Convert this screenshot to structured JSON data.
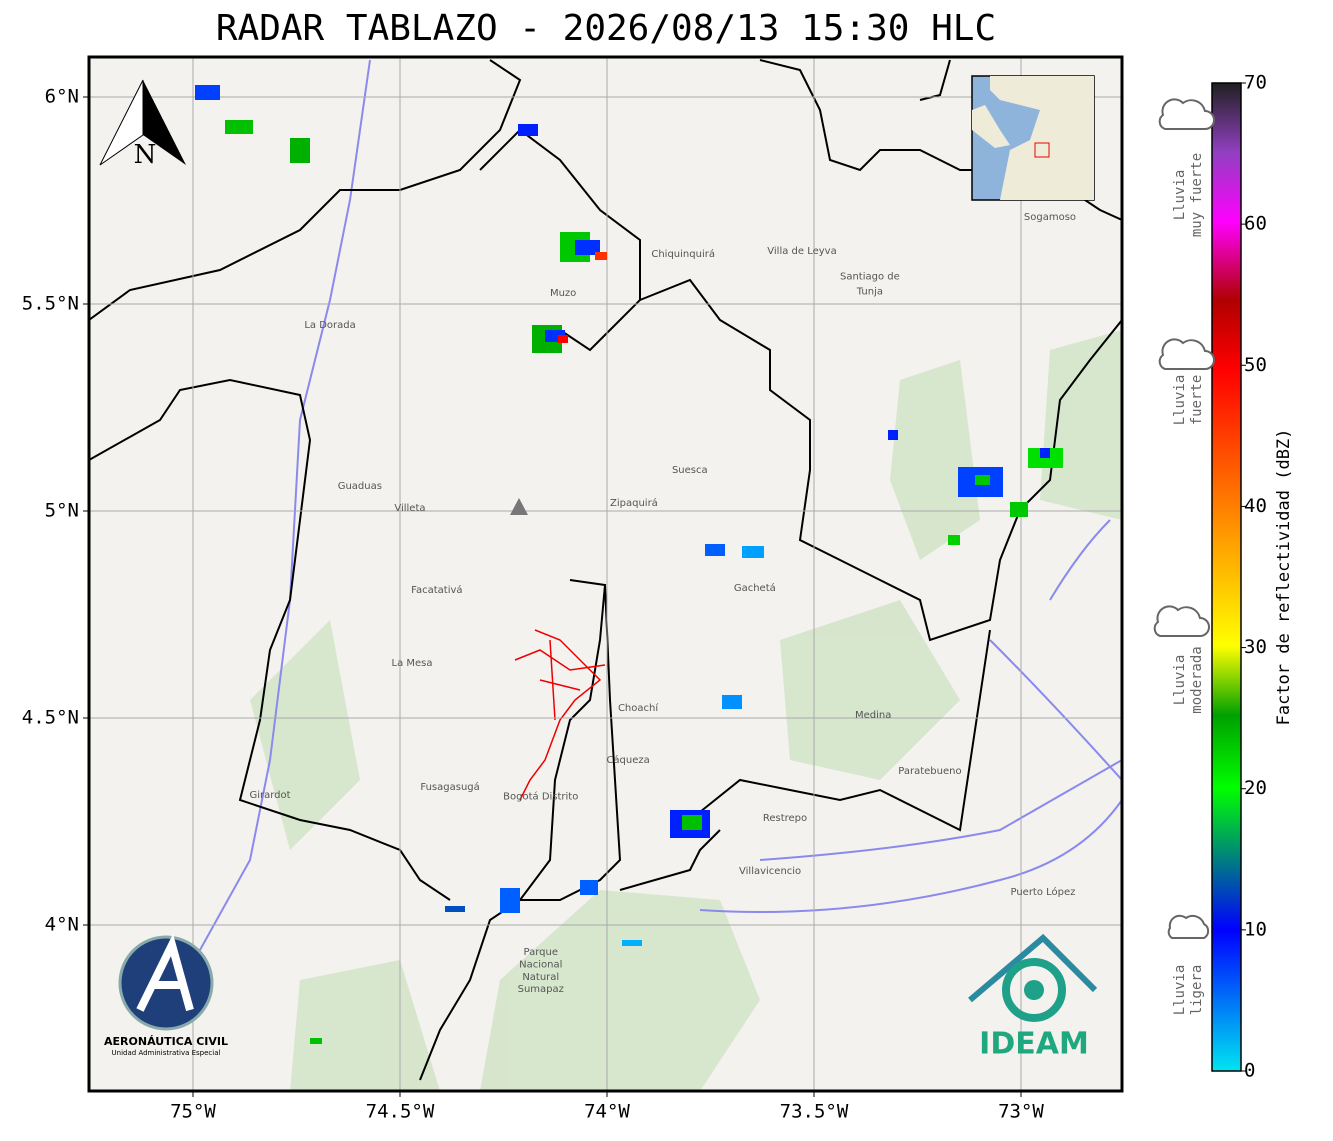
{
  "title": "RADAR TABLAZO - 2026/08/13 15:30 HLC",
  "map": {
    "lon_ticks": [
      {
        "value": -75,
        "label": "75°W"
      },
      {
        "value": -74.5,
        "label": "74.5°W"
      },
      {
        "value": -74,
        "label": "74°W"
      },
      {
        "value": -73.5,
        "label": "73.5°W"
      },
      {
        "value": -73,
        "label": "73°W"
      }
    ],
    "lat_ticks": [
      {
        "value": 6,
        "label": "6°N"
      },
      {
        "value": 5.5,
        "label": "5.5°N"
      },
      {
        "value": 5,
        "label": "5°N"
      },
      {
        "value": 4.5,
        "label": "4.5°N"
      },
      {
        "value": 4,
        "label": "4°N"
      }
    ],
    "north": "N",
    "places": [
      {
        "name": "Villavicencio",
        "lon": -73.606,
        "lat": 4.13
      },
      {
        "name": "Villa de Leyva",
        "lon": -73.529,
        "lat": 5.628
      },
      {
        "name": "Santiago de",
        "lon": -73.365,
        "lat": 5.566
      },
      {
        "name": "Tunja",
        "lon": -73.365,
        "lat": 5.53
      },
      {
        "name": "Sogamoso",
        "lon": -72.93,
        "lat": 5.71
      },
      {
        "name": "Zipaquirá",
        "lon": -73.935,
        "lat": 5.019
      },
      {
        "name": "Facatativá",
        "lon": -74.411,
        "lat": 4.809
      },
      {
        "name": "Fusagasugá",
        "lon": -74.379,
        "lat": 4.333
      },
      {
        "name": "Girardot",
        "lon": -74.814,
        "lat": 4.314
      },
      {
        "name": "La Dorada",
        "lon": -74.669,
        "lat": 5.449
      },
      {
        "name": "Muzo",
        "lon": -74.106,
        "lat": 5.527
      },
      {
        "name": "Chiquinquirá",
        "lon": -73.816,
        "lat": 5.621
      },
      {
        "name": "Puerto López",
        "lon": -72.947,
        "lat": 4.08
      },
      {
        "name": "Suesca",
        "lon": -73.8,
        "lat": 5.099
      },
      {
        "name": "Medina",
        "lon": -73.357,
        "lat": 4.507
      },
      {
        "name": "Villeta",
        "lon": -74.476,
        "lat": 5.007
      },
      {
        "name": "Guaduas",
        "lon": -74.597,
        "lat": 5.06
      },
      {
        "name": "La Mesa",
        "lon": -74.471,
        "lat": 4.633
      },
      {
        "name": "Choachí",
        "lon": -73.925,
        "lat": 4.524
      },
      {
        "name": "Gachetá",
        "lon": -73.643,
        "lat": 4.814
      },
      {
        "name": "Cáqueza",
        "lon": -73.949,
        "lat": 4.399
      },
      {
        "name": "Restrepo",
        "lon": -73.57,
        "lat": 4.258
      },
      {
        "name": "Paratebueno",
        "lon": -73.22,
        "lat": 4.372
      },
      {
        "name": "Bogotá Distrito",
        "lon": -74.16,
        "lat": 4.31
      },
      {
        "name": "Parque",
        "lon": -74.16,
        "lat": 3.935
      },
      {
        "name": "Nacional",
        "lon": -74.16,
        "lat": 3.905
      },
      {
        "name": "Natural",
        "lon": -74.16,
        "lat": 3.875
      },
      {
        "name": "Sumapaz",
        "lon": -74.16,
        "lat": 3.845
      }
    ]
  },
  "colorbar": {
    "label": "Factor de reflectividad (dBZ)",
    "lim": [
      0,
      70
    ],
    "ticks": [
      0,
      10,
      20,
      30,
      40,
      50,
      60,
      70
    ]
  },
  "legend": [
    {
      "lines": [
        "Lluvia",
        "muy fuerte"
      ]
    },
    {
      "lines": [
        "Lluvia",
        "fuerte"
      ]
    },
    {
      "lines": [
        "Lluvia",
        "moderada"
      ]
    },
    {
      "lines": [
        "Lluvia",
        "ligera"
      ]
    }
  ],
  "logos": {
    "aerocivil": "AERONÁUTICA CIVIL",
    "aerocivil_sub": "Unidad Administrativa Especial",
    "ideam": "IDEAM"
  }
}
